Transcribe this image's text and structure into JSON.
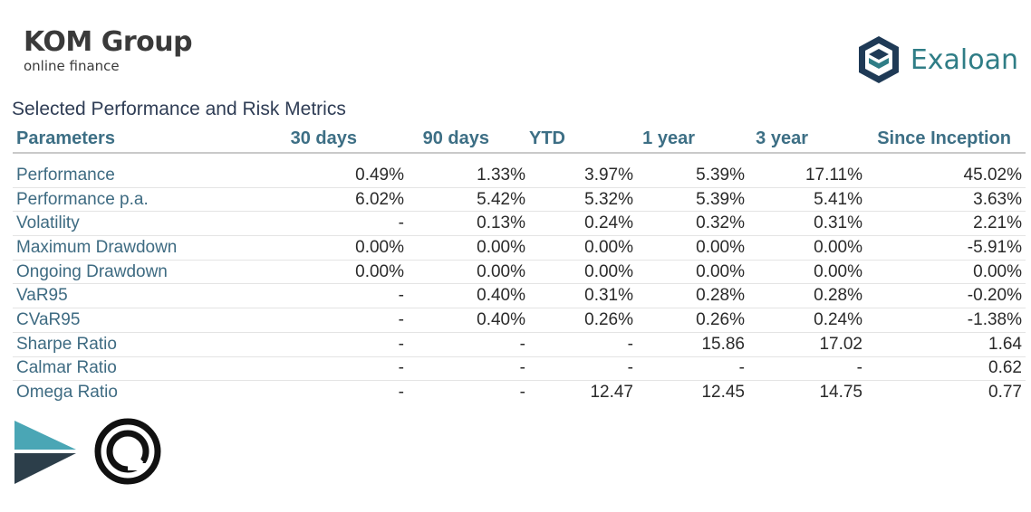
{
  "header": {
    "kom_name": "KOM Group",
    "kom_tagline": "online finance",
    "exaloan_name": "Exaloan"
  },
  "table": {
    "title": "Selected Performance and Risk Metrics",
    "columns": [
      "Parameters",
      "30 days",
      "90 days",
      "YTD",
      "1 year",
      "3 year",
      "Since Inception"
    ],
    "rows": [
      {
        "label": "Performance",
        "values": [
          "0.49%",
          "1.33%",
          "3.97%",
          "5.39%",
          "17.11%",
          "45.02%"
        ]
      },
      {
        "label": "Performance p.a.",
        "values": [
          "6.02%",
          "5.42%",
          "5.32%",
          "5.39%",
          "5.41%",
          "3.63%"
        ]
      },
      {
        "label": "Volatility",
        "values": [
          "-",
          "0.13%",
          "0.24%",
          "0.32%",
          "0.31%",
          "2.21%"
        ]
      },
      {
        "label": "Maximum Drawdown",
        "values": [
          "0.00%",
          "0.00%",
          "0.00%",
          "0.00%",
          "0.00%",
          "-5.91%"
        ]
      },
      {
        "label": "Ongoing Drawdown",
        "values": [
          "0.00%",
          "0.00%",
          "0.00%",
          "0.00%",
          "0.00%",
          "0.00%"
        ]
      },
      {
        "label": "VaR95",
        "values": [
          "-",
          "0.40%",
          "0.31%",
          "0.28%",
          "0.28%",
          "-0.20%"
        ]
      },
      {
        "label": "CVaR95",
        "values": [
          "-",
          "0.40%",
          "0.26%",
          "0.26%",
          "0.24%",
          "-1.38%"
        ]
      },
      {
        "label": "Sharpe Ratio",
        "values": [
          "-",
          "-",
          "-",
          "15.86",
          "17.02",
          "1.64"
        ]
      },
      {
        "label": "Calmar Ratio",
        "values": [
          "-",
          "-",
          "-",
          "-",
          "-",
          "0.62"
        ]
      },
      {
        "label": "Omega Ratio",
        "values": [
          "-",
          "-",
          "12.47",
          "12.45",
          "14.75",
          "0.77"
        ]
      }
    ]
  },
  "colors": {
    "header_text": "#3d6f85",
    "label_text": "#3e6b82",
    "exaloan_teal": "#2f7d86",
    "exaloan_navy": "#1f3a56",
    "arrow_teal": "#4aa6b5",
    "arrow_dark": "#2c3e4a"
  },
  "icons": {
    "exaloan_mark": "hexagon-cube-logo",
    "bottom_left": "arrow-logo",
    "bottom_right": "concentric-ring-logo"
  }
}
